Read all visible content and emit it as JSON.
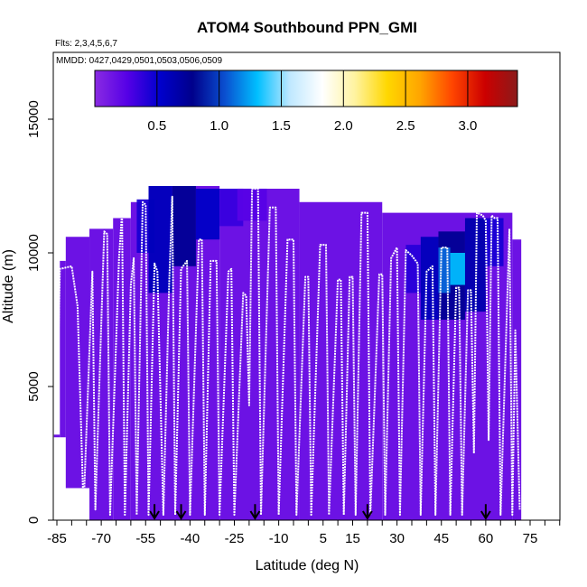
{
  "chart_data": {
    "type": "heatmap",
    "title": "ATOM4 Southbound PPN_GMI",
    "subtitle_flights": "Flts: 2,3,4,5,6,7",
    "subtitle_dates": "MMDD: 0427,0429,0501,0503,0506,0509",
    "xlabel": "Latitude (deg N)",
    "ylabel": "Altitude (m)",
    "xlim": [
      -88,
      90
    ],
    "ylim": [
      0,
      17500
    ],
    "x_tick_labels": [
      "-85",
      "-70",
      "-55",
      "-40",
      "-25",
      "-10",
      "5",
      "15",
      "30",
      "45",
      "60",
      "75"
    ],
    "x_tick_values": [
      -85,
      -70,
      -55,
      -40,
      -25,
      -10,
      5,
      15,
      30,
      45,
      60,
      75
    ],
    "y_ticks": [
      0,
      5000,
      10000,
      15000
    ],
    "y_tick_labels": [
      "0",
      "5000",
      "10000",
      "15000"
    ],
    "colorbar": {
      "range": [
        0,
        3.4
      ],
      "ticks": [
        0.5,
        1.0,
        1.5,
        2.0,
        2.5,
        3.0
      ],
      "tick_labels": [
        "0.5",
        "1.0",
        "1.5",
        "2.0",
        "2.5",
        "3.0"
      ],
      "colors": [
        "#8a2be2",
        "#5500e6",
        "#0000cd",
        "#00008b",
        "#0a4fd0",
        "#00bfff",
        "#bfe8ff",
        "#ffffff",
        "#fff3a0",
        "#ffd700",
        "#ffa500",
        "#ff4500",
        "#cc0000",
        "#8b1a1a"
      ]
    },
    "background_value": 0.15,
    "domain_columns": [
      {
        "x": [
          -86,
          -84
        ],
        "top": 3200
      },
      {
        "x": [
          -84,
          -82
        ],
        "top": 9700
      },
      {
        "x": [
          -82,
          -74
        ],
        "top": 10600
      },
      {
        "x": [
          -74,
          -66
        ],
        "top": 10900
      },
      {
        "x": [
          -66,
          -60
        ],
        "top": 11300
      },
      {
        "x": [
          -60,
          -54
        ],
        "top": 11900
      },
      {
        "x": [
          -54,
          -30
        ],
        "top": 12500
      },
      {
        "x": [
          -30,
          -3
        ],
        "top": 12400
      },
      {
        "x": [
          -3,
          25
        ],
        "top": 11900
      },
      {
        "x": [
          25,
          69
        ],
        "top": 11500
      },
      {
        "x": [
          69,
          72
        ],
        "top": 10500
      }
    ],
    "domain_bottom": [
      {
        "x": [
          -86,
          -82
        ],
        "bottom": 3100
      },
      {
        "x": [
          -82,
          -78
        ],
        "bottom": 1200
      },
      {
        "x": [
          -78,
          -76
        ],
        "bottom": 400
      },
      {
        "x": [
          -76,
          72
        ],
        "bottom": 0
      }
    ],
    "patches": [
      {
        "x": [
          -58,
          -52
        ],
        "y": [
          10000,
          12000
        ],
        "value": 0.45
      },
      {
        "x": [
          -54,
          -46
        ],
        "y": [
          8500,
          12500
        ],
        "value": 0.6
      },
      {
        "x": [
          -46,
          -38
        ],
        "y": [
          9500,
          12500
        ],
        "value": 0.75
      },
      {
        "x": [
          -38,
          -30
        ],
        "y": [
          10500,
          12400
        ],
        "value": 0.55
      },
      {
        "x": [
          -30,
          -22
        ],
        "y": [
          11000,
          12400
        ],
        "value": 0.35
      },
      {
        "x": [
          -24,
          -14
        ],
        "y": [
          11200,
          12400
        ],
        "value": 0.25
      },
      {
        "x": [
          33,
          38
        ],
        "y": [
          8500,
          10300
        ],
        "value": 0.4
      },
      {
        "x": [
          38,
          44
        ],
        "y": [
          7500,
          10600
        ],
        "value": 0.6
      },
      {
        "x": [
          44,
          53
        ],
        "y": [
          7500,
          10800
        ],
        "value": 0.75
      },
      {
        "x": [
          53,
          60
        ],
        "y": [
          7800,
          11300
        ],
        "value": 0.65
      },
      {
        "x": [
          60,
          66
        ],
        "y": [
          9500,
          11300
        ],
        "value": 0.45
      },
      {
        "x": [
          44,
          48
        ],
        "y": [
          8500,
          10200
        ],
        "value": 1.1
      },
      {
        "x": [
          48,
          53
        ],
        "y": [
          8800,
          10000
        ],
        "value": 1.3
      }
    ],
    "flight_track": [
      [
        -85,
        3800
      ],
      [
        -84,
        9400
      ],
      [
        -80,
        9500
      ],
      [
        -78,
        8000
      ],
      [
        -76,
        400
      ],
      [
        -73,
        9300
      ],
      [
        -72,
        400
      ],
      [
        -69,
        10800
      ],
      [
        -68,
        10700
      ],
      [
        -67,
        200
      ],
      [
        -64,
        9800
      ],
      [
        -63,
        11500
      ],
      [
        -62,
        200
      ],
      [
        -60,
        8800
      ],
      [
        -59,
        9800
      ],
      [
        -58,
        200
      ],
      [
        -56,
        11900
      ],
      [
        -55,
        11800
      ],
      [
        -54,
        200
      ],
      [
        -52,
        9600
      ],
      [
        -51,
        9300
      ],
      [
        -49,
        200
      ],
      [
        -47,
        8900
      ],
      [
        -46,
        12100
      ],
      [
        -45,
        200
      ],
      [
        -43,
        9400
      ],
      [
        -41,
        9700
      ],
      [
        -40,
        200
      ],
      [
        -37,
        10500
      ],
      [
        -36,
        10500
      ],
      [
        -35,
        200
      ],
      [
        -33,
        9700
      ],
      [
        -31,
        9700
      ],
      [
        -30,
        200
      ],
      [
        -27,
        9300
      ],
      [
        -26,
        9400
      ],
      [
        -25,
        200
      ],
      [
        -22,
        8500
      ],
      [
        -21,
        8400
      ],
      [
        -20,
        4300
      ],
      [
        -19,
        12400
      ],
      [
        -17,
        12400
      ],
      [
        -16,
        200
      ],
      [
        -13,
        11700
      ],
      [
        -11,
        11700
      ],
      [
        -10,
        200
      ],
      [
        -7,
        10500
      ],
      [
        -5,
        10500
      ],
      [
        -4,
        200
      ],
      [
        -1,
        9100
      ],
      [
        0,
        9100
      ],
      [
        1,
        200
      ],
      [
        4,
        10300
      ],
      [
        6,
        10300
      ],
      [
        7,
        200
      ],
      [
        10,
        9000
      ],
      [
        11,
        9000
      ],
      [
        12,
        200
      ],
      [
        14,
        9100
      ],
      [
        15,
        9100
      ],
      [
        16,
        200
      ],
      [
        18,
        11500
      ],
      [
        20,
        11500
      ],
      [
        21,
        200
      ],
      [
        24,
        9200
      ],
      [
        25,
        9200
      ],
      [
        26,
        200
      ],
      [
        28,
        9800
      ],
      [
        30,
        10200
      ],
      [
        31,
        200
      ],
      [
        33,
        10100
      ],
      [
        35,
        9900
      ],
      [
        37,
        9600
      ],
      [
        38,
        200
      ],
      [
        40,
        9300
      ],
      [
        42,
        9500
      ],
      [
        43,
        200
      ],
      [
        45,
        10200
      ],
      [
        47,
        10200
      ],
      [
        48,
        200
      ],
      [
        50,
        8700
      ],
      [
        51,
        8700
      ],
      [
        52,
        200
      ],
      [
        54,
        8600
      ],
      [
        55,
        8600
      ],
      [
        56,
        2500
      ],
      [
        57,
        11500
      ],
      [
        59,
        11400
      ],
      [
        60,
        11200
      ],
      [
        61,
        3000
      ],
      [
        62,
        11400
      ],
      [
        63,
        11300
      ],
      [
        64,
        11300
      ],
      [
        65,
        200
      ],
      [
        68,
        10900
      ],
      [
        69,
        200
      ],
      [
        70,
        7100
      ],
      [
        71,
        2500
      ],
      [
        71.5,
        400
      ]
    ],
    "arrow_markers": [
      -52,
      -43,
      -18,
      20,
      60
    ]
  }
}
